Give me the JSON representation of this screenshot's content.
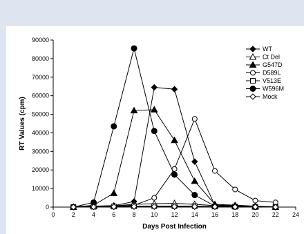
{
  "colors": {
    "page_background": "#dfe5f0",
    "plot_background": "#ffffff",
    "ink": "#000000"
  },
  "chart_data": {
    "type": "line",
    "title": "",
    "xlabel": "Days Post Infection",
    "ylabel": "RT Values (cpm)",
    "xlim": [
      0,
      24
    ],
    "ylim": [
      0,
      90000
    ],
    "x_ticks": [
      0,
      2,
      4,
      6,
      8,
      10,
      12,
      14,
      16,
      18,
      20,
      22,
      24
    ],
    "y_ticks": [
      0,
      10000,
      20000,
      30000,
      40000,
      50000,
      60000,
      70000,
      80000,
      90000
    ],
    "grid": false,
    "legend_position": "top-right",
    "x": [
      2,
      4,
      6,
      8,
      10,
      12,
      14,
      16,
      18,
      20,
      22
    ],
    "series": [
      {
        "name": "WT",
        "marker": "diamond-filled",
        "values": [
          0,
          500,
          800,
          3000,
          64500,
          63500,
          24500,
          1000,
          800,
          200,
          0
        ]
      },
      {
        "name": "Ct Del",
        "marker": "triangle-open",
        "values": [
          0,
          400,
          700,
          1500,
          1800,
          2000,
          1500,
          800,
          500,
          200,
          100
        ]
      },
      {
        "name": "G547D",
        "marker": "triangle-filled",
        "values": [
          0,
          1000,
          7500,
          52000,
          52500,
          36000,
          14000,
          1500,
          1000,
          500,
          200
        ]
      },
      {
        "name": "D589L",
        "marker": "circle-open",
        "values": [
          0,
          300,
          500,
          1000,
          5000,
          20500,
          47500,
          19500,
          9500,
          3500,
          2500
        ]
      },
      {
        "name": "V513E",
        "marker": "square-open",
        "values": [
          0,
          200,
          300,
          500,
          500,
          500,
          500,
          300,
          200,
          100,
          0
        ]
      },
      {
        "name": "W596M",
        "marker": "circle-filled",
        "values": [
          0,
          2500,
          43500,
          85500,
          41000,
          17500,
          6500,
          500,
          300,
          100,
          0
        ]
      },
      {
        "name": "Mock",
        "marker": "diamond-open",
        "values": [
          0,
          100,
          200,
          300,
          300,
          300,
          300,
          200,
          100,
          100,
          0
        ]
      }
    ]
  }
}
